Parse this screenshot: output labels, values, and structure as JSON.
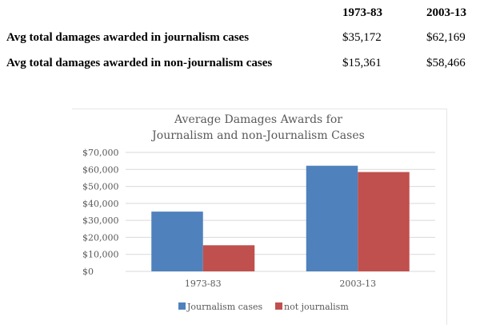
{
  "table": {
    "headers": [
      "",
      "1973-83",
      "2003-13"
    ],
    "rows": [
      {
        "label": "Avg total damages awarded in journalism cases",
        "values": [
          "$35,172",
          "$62,169"
        ]
      },
      {
        "label": "Avg total damages awarded in non-journalism cases",
        "values": [
          "$15,361",
          "$58,466"
        ]
      }
    ]
  },
  "chart_data": {
    "type": "bar",
    "title_line1": "Average Damages Awards for",
    "title_line2": "Journalism and non-Journalism Cases",
    "categories": [
      "1973-83",
      "2003-13"
    ],
    "series": [
      {
        "name": "Journalism cases",
        "values": [
          35172,
          62169
        ],
        "color": "#4f81bd"
      },
      {
        "name": "not journalism",
        "values": [
          15361,
          58466
        ],
        "color": "#c0504d"
      }
    ],
    "ylim": [
      0,
      70000
    ],
    "yticks": [
      "$0",
      "$10,000",
      "$20,000",
      "$30,000",
      "$40,000",
      "$50,000",
      "$60,000",
      "$70,000"
    ],
    "grid": true,
    "legend_position": "bottom"
  }
}
